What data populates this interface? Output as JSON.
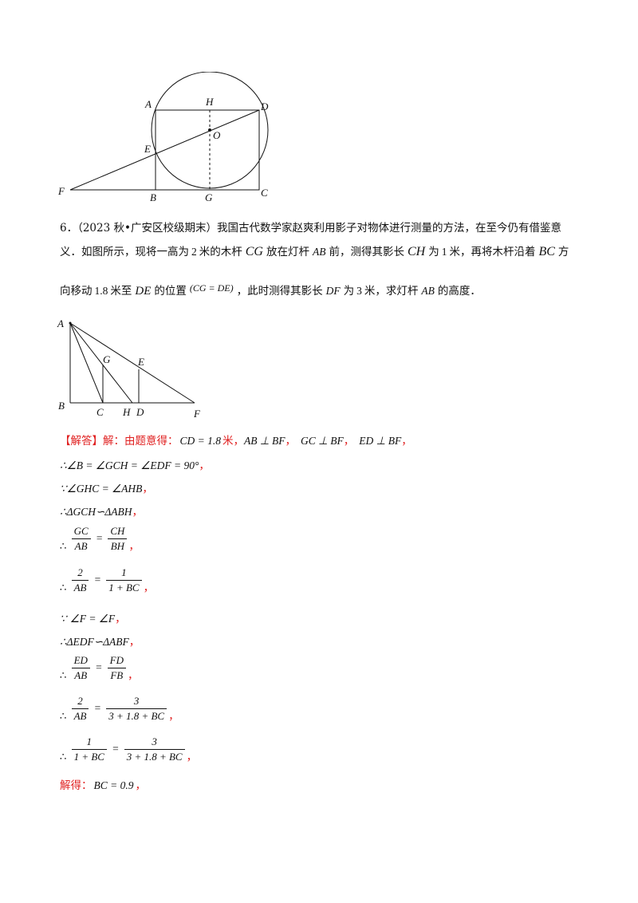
{
  "fig1_labels": {
    "A": "A",
    "H": "H",
    "D": "D",
    "O": "O",
    "E": "E",
    "F": "F",
    "B": "B",
    "G": "G",
    "C": "C"
  },
  "problem": {
    "num": "6．",
    "source": "（2023 秋•广安区校级期末）",
    "line1": "我国古代数学家赵爽利用影子对物体进行测量的方法，在至今仍有借鉴意",
    "line2a": "义．如图所示，现将一高为",
    "line2b": "2",
    "line2c": "米的木杆",
    "line2d": "CG",
    "line2e": "放在灯杆",
    "line2f": "AB",
    "line2g": "前，测得其影长",
    "line2h": "CH",
    "line2i": "为",
    "line2j": "1",
    "line2k": "米，再将木杆沿着",
    "line2l": "BC",
    "line2m": "方",
    "line3a": "向移动",
    "line3b": "1.8",
    "line3c": "米至",
    "line3d": "DE",
    "line3e": "的位置",
    "line3f": "(CG = DE)",
    "line3g": "，此时测得其影长",
    "line3h": "DF",
    "line3i": "为",
    "line3j": "3",
    "line3k": "米，求灯杆",
    "line3l": "AB",
    "line3m": "的高度．"
  },
  "fig2_labels": {
    "A": "A",
    "G": "G",
    "E": "E",
    "B": "B",
    "C": "C",
    "H": "H",
    "D": "D",
    "F": "F"
  },
  "solution": {
    "tag": "【解答】",
    "intro": "解：由题意得：",
    "cd": "CD = 1.8",
    "mi": "米，",
    "perp1": "AB ⊥ BF",
    "perp2": "GC ⊥ BF",
    "perp3": "ED ⊥ BF",
    "comma": "，",
    "s1": "∴∠B = ∠GCH = ∠EDF = 90°",
    "s2": "∵∠GHC = ∠AHB",
    "s3": "∴ΔGCH∽ΔABH",
    "therefore": "∴",
    "because": "∵",
    "f1n": "GC",
    "f1d": "AB",
    "f2n": "CH",
    "f2d": "BH",
    "f3n": "2",
    "f3d": "AB",
    "f4n": "1",
    "f4d": "1 + BC",
    "s4": "∠F = ∠F",
    "s5": "∴ΔEDF∽ΔABF",
    "f5n": "ED",
    "f5d": "AB",
    "f6n": "FD",
    "f6d": "FB",
    "f7n": "2",
    "f7d": "AB",
    "f8n": "3",
    "f8d": "3 + 1.8 + BC",
    "f9n": "1",
    "f9d": "1 + BC",
    "f10n": "3",
    "f10d": "3 + 1.8 + BC",
    "eq": "=",
    "final_label": "解得：",
    "final": "BC = 0.9"
  }
}
